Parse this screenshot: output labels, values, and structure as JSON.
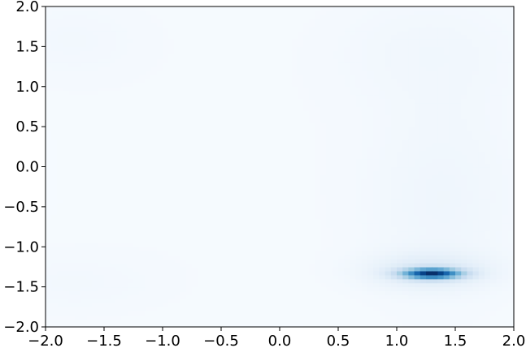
{
  "chart_data": {
    "type": "heatmap",
    "title": "",
    "xlabel": "",
    "ylabel": "",
    "xlim": [
      -2.0,
      2.0
    ],
    "ylim": [
      -2.0,
      2.0
    ],
    "x_ticks": [
      "−2.0",
      "−1.5",
      "−1.0",
      "−0.5",
      "0.0",
      "0.5",
      "1.0",
      "1.5",
      "2.0"
    ],
    "x_tick_values": [
      -2.0,
      -1.5,
      -1.0,
      -0.5,
      0.0,
      0.5,
      1.0,
      1.5,
      2.0
    ],
    "y_ticks": [
      "−2.0",
      "−1.5",
      "−1.0",
      "−0.5",
      "0.0",
      "0.5",
      "1.0",
      "1.5",
      "2.0"
    ],
    "y_tick_values": [
      -2.0,
      -1.5,
      -1.0,
      -0.5,
      0.0,
      0.5,
      1.0,
      1.5,
      2.0
    ],
    "colormap": "Blues",
    "grid": false,
    "resolution": 80,
    "density_components": [
      {
        "x": 1.3,
        "y": -1.33,
        "sx": 0.17,
        "sy": 0.045,
        "weight": 1.0
      },
      {
        "x": 1.28,
        "y": -1.3,
        "sx": 0.35,
        "sy": 0.15,
        "weight": 0.14
      },
      {
        "x": 1.4,
        "y": -0.4,
        "sx": 0.45,
        "sy": 0.9,
        "weight": 0.035
      },
      {
        "x": 1.3,
        "y": 1.5,
        "sx": 0.6,
        "sy": 0.5,
        "weight": 0.025
      },
      {
        "x": -1.8,
        "y": 1.6,
        "sx": 0.5,
        "sy": 0.4,
        "weight": 0.02
      },
      {
        "x": -1.8,
        "y": -1.45,
        "sx": 0.6,
        "sy": 0.3,
        "weight": 0.02
      },
      {
        "x": 0.0,
        "y": 0.0,
        "sx": 2.5,
        "sy": 2.5,
        "weight": 0.012
      }
    ]
  }
}
